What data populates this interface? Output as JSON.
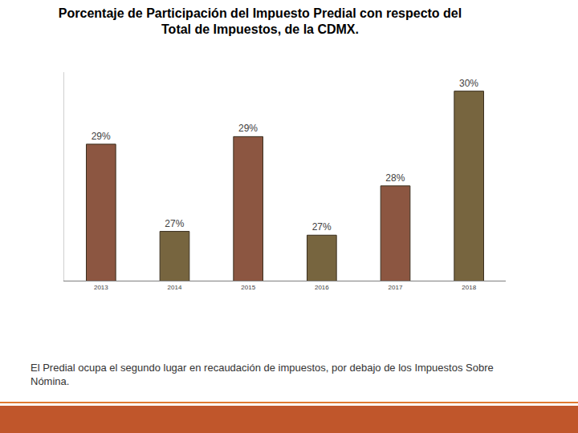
{
  "chart_data": {
    "type": "bar",
    "title": "Porcentaje de Participación del Impuesto Predial con respecto del\nTotal de Impuestos, de la CDMX.",
    "categories": [
      "2013",
      "2014",
      "2015",
      "2016",
      "2017",
      "2018"
    ],
    "values": [
      28.9,
      26.6,
      29.1,
      26.5,
      27.8,
      30.3
    ],
    "value_labels": [
      "29%",
      "27%",
      "29%",
      "27%",
      "28%",
      "30%"
    ],
    "colors": [
      "#8c5641",
      "#77653f",
      "#8c5641",
      "#77653f",
      "#8c5641",
      "#77653f"
    ],
    "ylim": [
      25.3,
      30.8
    ],
    "data_labels": true,
    "tick_labels": "x",
    "grid": false,
    "annotations": [
      "El Predial ocupa el segundo lugar en recaudación de impuestos, por debajo de los Impuestos Sobre\nNómina."
    ]
  }
}
